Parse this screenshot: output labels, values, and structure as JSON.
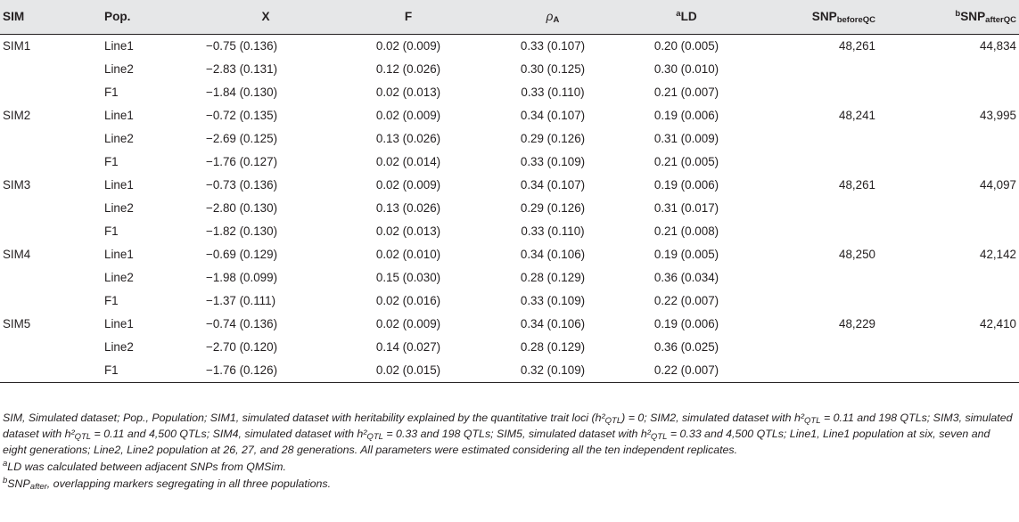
{
  "header": {
    "sim": "SIM",
    "pop": "Pop.",
    "x": "X",
    "f": "F",
    "rho_symbol": "ρ",
    "rho_sub": "A",
    "ld_sup": "a",
    "ld": "LD",
    "snp_before": "SNP",
    "snp_before_sub": "beforeQC",
    "snp_after_sup": "b",
    "snp_after": "SNP",
    "snp_after_sub": "afterQC"
  },
  "rows": [
    {
      "sim": "SIM1",
      "pop": "Line1",
      "x": "−0.75 (0.136)",
      "f": "0.02 (0.009)",
      "rho": "0.33 (0.107)",
      "ld": "0.20 (0.005)",
      "snp_before": "48,261",
      "snp_after": "44,834"
    },
    {
      "sim": "",
      "pop": "Line2",
      "x": "−2.83 (0.131)",
      "f": "0.12 (0.026)",
      "rho": "0.30 (0.125)",
      "ld": "0.30 (0.010)",
      "snp_before": "",
      "snp_after": ""
    },
    {
      "sim": "",
      "pop": "F1",
      "x": "−1.84 (0.130)",
      "f": "0.02 (0.013)",
      "rho": "0.33 (0.110)",
      "ld": "0.21 (0.007)",
      "snp_before": "",
      "snp_after": ""
    },
    {
      "sim": "SIM2",
      "pop": "Line1",
      "x": "−0.72 (0.135)",
      "f": "0.02 (0.009)",
      "rho": "0.34 (0.107)",
      "ld": "0.19 (0.006)",
      "snp_before": "48,241",
      "snp_after": "43,995"
    },
    {
      "sim": "",
      "pop": "Line2",
      "x": "−2.69 (0.125)",
      "f": "0.13 (0.026)",
      "rho": "0.29 (0.126)",
      "ld": "0.31 (0.009)",
      "snp_before": "",
      "snp_after": ""
    },
    {
      "sim": "",
      "pop": "F1",
      "x": "−1.76 (0.127)",
      "f": "0.02 (0.014)",
      "rho": "0.33 (0.109)",
      "ld": "0.21 (0.005)",
      "snp_before": "",
      "snp_after": ""
    },
    {
      "sim": "SIM3",
      "pop": "Line1",
      "x": "−0.73 (0.136)",
      "f": "0.02 (0.009)",
      "rho": "0.34 (0.107)",
      "ld": "0.19 (0.006)",
      "snp_before": "48,261",
      "snp_after": "44,097"
    },
    {
      "sim": "",
      "pop": "Line2",
      "x": "−2.80 (0.130)",
      "f": "0.13 (0.026)",
      "rho": "0.29 (0.126)",
      "ld": "0.31 (0.017)",
      "snp_before": "",
      "snp_after": ""
    },
    {
      "sim": "",
      "pop": "F1",
      "x": "−1.82 (0.130)",
      "f": "0.02 (0.013)",
      "rho": "0.33 (0.110)",
      "ld": "0.21 (0.008)",
      "snp_before": "",
      "snp_after": ""
    },
    {
      "sim": "SIM4",
      "pop": "Line1",
      "x": "−0.69 (0.129)",
      "f": "0.02 (0.010)",
      "rho": "0.34 (0.106)",
      "ld": "0.19 (0.005)",
      "snp_before": "48,250",
      "snp_after": "42,142"
    },
    {
      "sim": "",
      "pop": "Line2",
      "x": "−1.98 (0.099)",
      "f": "0.15 (0.030)",
      "rho": "0.28 (0.129)",
      "ld": "0.36 (0.034)",
      "snp_before": "",
      "snp_after": ""
    },
    {
      "sim": "",
      "pop": "F1",
      "x": "−1.37 (0.111)",
      "f": "0.02 (0.016)",
      "rho": "0.33 (0.109)",
      "ld": "0.22 (0.007)",
      "snp_before": "",
      "snp_after": ""
    },
    {
      "sim": "SIM5",
      "pop": "Line1",
      "x": "−0.74 (0.136)",
      "f": "0.02 (0.009)",
      "rho": "0.34 (0.106)",
      "ld": "0.19 (0.006)",
      "snp_before": "48,229",
      "snp_after": "42,410"
    },
    {
      "sim": "",
      "pop": "Line2",
      "x": "−2.70 (0.120)",
      "f": "0.14 (0.027)",
      "rho": "0.28 (0.129)",
      "ld": "0.36 (0.025)",
      "snp_before": "",
      "snp_after": ""
    },
    {
      "sim": "",
      "pop": "F1",
      "x": "−1.76 (0.126)",
      "f": "0.02 (0.015)",
      "rho": "0.32 (0.109)",
      "ld": "0.22 (0.007)",
      "snp_before": "",
      "snp_after": ""
    }
  ],
  "notes": {
    "main": "SIM, Simulated dataset; Pop., Population; SIM1, simulated dataset with heritability explained by the quantitative trait loci (h²QTL) = 0; SIM2, simulated dataset with h²QTL = 0.11 and 198 QTLs; SIM3, simulated dataset with h²QTL = 0.11 and 4,500 QTLs; SIM4, simulated dataset with h²QTL = 0.33 and 198 QTLs; SIM5, simulated dataset with h²QTL = 0.33 and 4,500 QTLs; Line1, Line1 population at six, seven and eight generations; Line2, Line2 population at 26, 27, and 28 generations. All parameters were estimated considering all the ten independent replicates.",
    "fn_a_mark": "a",
    "fn_a": "LD was calculated between adjacent SNPs from QMSim.",
    "fn_b_mark": "b",
    "fn_b_snp": "SNP",
    "fn_b_sub": "after",
    "fn_b": ", overlapping markers segregating in all three populations."
  }
}
